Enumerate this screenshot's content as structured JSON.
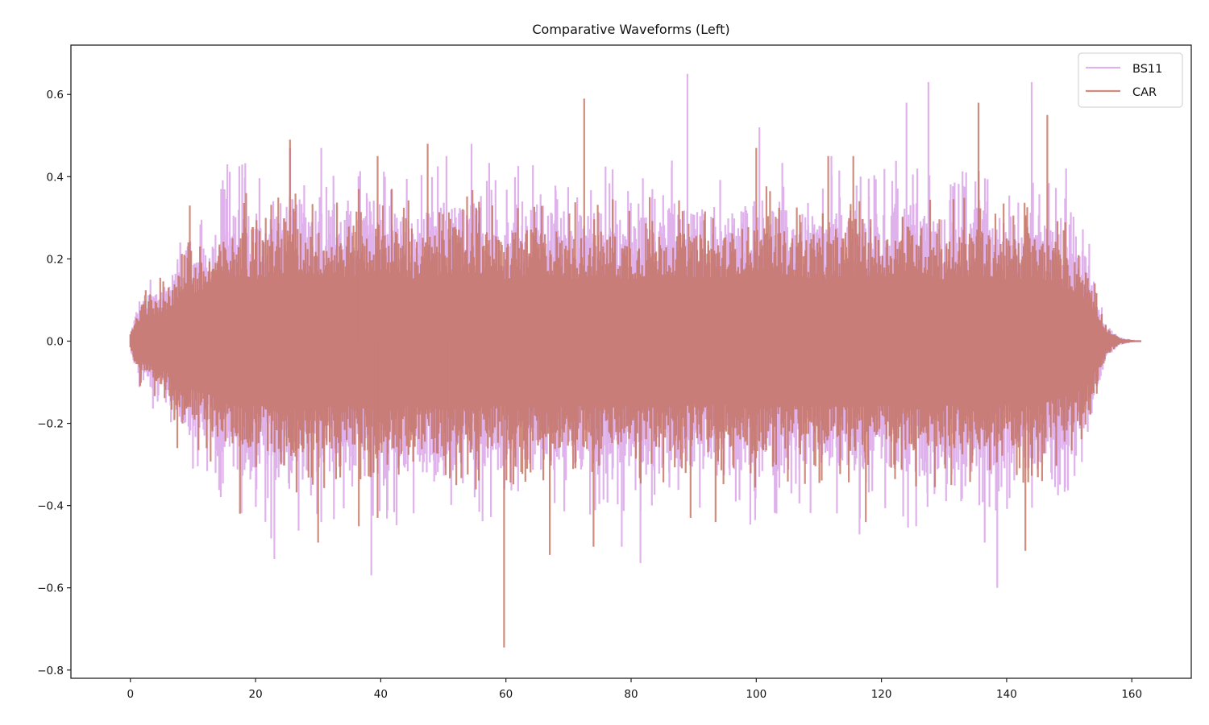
{
  "chart_data": {
    "type": "line",
    "title": "Comparative Waveforms (Left)",
    "xlabel": "",
    "ylabel": "",
    "xlim": [
      -9.5,
      169.5
    ],
    "ylim": [
      -0.82,
      0.72
    ],
    "x_ticks": [
      0,
      20,
      40,
      60,
      80,
      100,
      120,
      140,
      160
    ],
    "x_tick_labels": [
      "0",
      "20",
      "40",
      "60",
      "80",
      "100",
      "120",
      "140",
      "160"
    ],
    "y_ticks": [
      0.6,
      0.4,
      0.2,
      0.0,
      -0.2,
      -0.4,
      -0.6,
      -0.8
    ],
    "y_tick_labels": [
      "0.6",
      "0.4",
      "0.2",
      "0.0",
      "−0.2",
      "−0.4",
      "−0.6",
      "−0.8"
    ],
    "grid": false,
    "legend_position": "upper right",
    "series": [
      {
        "name": "BS11",
        "color": "#d9a0e8",
        "alpha": 0.8,
        "signal_end_x": 161.5,
        "envelope": {
          "x": [
            0,
            1,
            2,
            4,
            6,
            8,
            10,
            12,
            15,
            18,
            20,
            25,
            30,
            35,
            40,
            45,
            50,
            55,
            60,
            65,
            70,
            75,
            80,
            85,
            90,
            95,
            100,
            105,
            110,
            115,
            120,
            125,
            130,
            135,
            140,
            145,
            150,
            153,
            154.5,
            156,
            158,
            161.5
          ],
          "pos": [
            0.02,
            0.08,
            0.1,
            0.13,
            0.15,
            0.2,
            0.22,
            0.23,
            0.3,
            0.33,
            0.3,
            0.35,
            0.34,
            0.32,
            0.36,
            0.3,
            0.33,
            0.34,
            0.3,
            0.34,
            0.3,
            0.32,
            0.3,
            0.33,
            0.32,
            0.31,
            0.36,
            0.32,
            0.3,
            0.32,
            0.31,
            0.35,
            0.3,
            0.33,
            0.3,
            0.32,
            0.25,
            0.2,
            0.12,
            0.04,
            0.01,
            0.0
          ],
          "neg": [
            -0.02,
            -0.08,
            -0.1,
            -0.13,
            -0.15,
            -0.2,
            -0.24,
            -0.25,
            -0.3,
            -0.33,
            -0.32,
            -0.35,
            -0.33,
            -0.32,
            -0.36,
            -0.31,
            -0.34,
            -0.33,
            -0.32,
            -0.33,
            -0.31,
            -0.33,
            -0.31,
            -0.33,
            -0.32,
            -0.31,
            -0.34,
            -0.32,
            -0.31,
            -0.33,
            -0.32,
            -0.34,
            -0.31,
            -0.33,
            -0.31,
            -0.32,
            -0.27,
            -0.22,
            -0.12,
            -0.04,
            -0.01,
            0.0
          ]
        },
        "peaks": [
          {
            "x": 14.5,
            "y": 0.37
          },
          {
            "x": 15.5,
            "y": 0.43
          },
          {
            "x": 25.5,
            "y": 0.47
          },
          {
            "x": 30.5,
            "y": 0.47
          },
          {
            "x": 50.5,
            "y": 0.45
          },
          {
            "x": 54.5,
            "y": 0.48
          },
          {
            "x": 89.0,
            "y": 0.65
          },
          {
            "x": 100.5,
            "y": 0.52
          },
          {
            "x": 112,
            "y": 0.45
          },
          {
            "x": 124,
            "y": 0.58
          },
          {
            "x": 127.5,
            "y": 0.63
          },
          {
            "x": 144.0,
            "y": 0.63
          },
          {
            "x": 149.5,
            "y": 0.42
          },
          {
            "x": 22.5,
            "y": -0.48
          },
          {
            "x": 23.0,
            "y": -0.53
          },
          {
            "x": 38.5,
            "y": -0.57
          },
          {
            "x": 30.5,
            "y": -0.44
          },
          {
            "x": 78.5,
            "y": -0.5
          },
          {
            "x": 81.5,
            "y": -0.54
          },
          {
            "x": 116.5,
            "y": -0.47
          },
          {
            "x": 138.5,
            "y": -0.6
          },
          {
            "x": 136.5,
            "y": -0.49
          },
          {
            "x": 10,
            "y": -0.31
          },
          {
            "x": 55,
            "y": -0.38
          }
        ]
      },
      {
        "name": "CAR",
        "color": "#c4705c",
        "alpha": 0.8,
        "signal_end_x": 161.5,
        "envelope": {
          "x": [
            0,
            1,
            2,
            4,
            6,
            8,
            10,
            12,
            15,
            18,
            20,
            25,
            30,
            35,
            40,
            45,
            50,
            55,
            60,
            65,
            70,
            75,
            80,
            85,
            90,
            95,
            100,
            105,
            110,
            115,
            120,
            125,
            130,
            135,
            140,
            145,
            150,
            153,
            154.5,
            156,
            158,
            161.5
          ],
          "pos": [
            0.02,
            0.07,
            0.09,
            0.11,
            0.13,
            0.17,
            0.19,
            0.2,
            0.25,
            0.27,
            0.25,
            0.28,
            0.27,
            0.26,
            0.29,
            0.25,
            0.27,
            0.28,
            0.25,
            0.28,
            0.25,
            0.27,
            0.25,
            0.27,
            0.26,
            0.26,
            0.29,
            0.27,
            0.25,
            0.27,
            0.26,
            0.29,
            0.25,
            0.27,
            0.25,
            0.26,
            0.21,
            0.17,
            0.1,
            0.035,
            0.008,
            0.0
          ],
          "neg": [
            -0.02,
            -0.07,
            -0.09,
            -0.11,
            -0.13,
            -0.17,
            -0.2,
            -0.21,
            -0.25,
            -0.27,
            -0.26,
            -0.28,
            -0.27,
            -0.26,
            -0.29,
            -0.26,
            -0.28,
            -0.27,
            -0.26,
            -0.27,
            -0.26,
            -0.27,
            -0.26,
            -0.27,
            -0.26,
            -0.26,
            -0.28,
            -0.26,
            -0.26,
            -0.27,
            -0.26,
            -0.28,
            -0.26,
            -0.27,
            -0.26,
            -0.26,
            -0.22,
            -0.18,
            -0.1,
            -0.035,
            -0.008,
            0.0
          ]
        },
        "peaks": [
          {
            "x": 9.5,
            "y": 0.33
          },
          {
            "x": 25.5,
            "y": 0.49
          },
          {
            "x": 36.5,
            "y": 0.37
          },
          {
            "x": 39.5,
            "y": 0.45
          },
          {
            "x": 47.5,
            "y": 0.48
          },
          {
            "x": 72.5,
            "y": 0.59
          },
          {
            "x": 100.0,
            "y": 0.47
          },
          {
            "x": 111.5,
            "y": 0.45
          },
          {
            "x": 115.5,
            "y": 0.45
          },
          {
            "x": 135.5,
            "y": 0.58
          },
          {
            "x": 146.5,
            "y": 0.55
          },
          {
            "x": 18.5,
            "y": 0.36
          },
          {
            "x": 17.5,
            "y": -0.42
          },
          {
            "x": 30.0,
            "y": -0.49
          },
          {
            "x": 36.5,
            "y": -0.45
          },
          {
            "x": 39.5,
            "y": -0.43
          },
          {
            "x": 59.7,
            "y": -0.745
          },
          {
            "x": 67.0,
            "y": -0.52
          },
          {
            "x": 74.0,
            "y": -0.5
          },
          {
            "x": 89.5,
            "y": -0.43
          },
          {
            "x": 93.5,
            "y": -0.44
          },
          {
            "x": 117.5,
            "y": -0.44
          },
          {
            "x": 143.0,
            "y": -0.51
          },
          {
            "x": 7.5,
            "y": -0.26
          }
        ]
      }
    ]
  }
}
